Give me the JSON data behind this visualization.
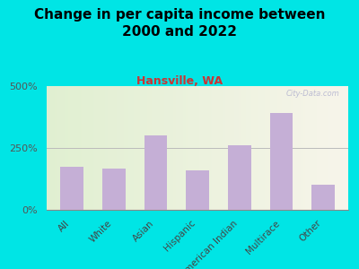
{
  "title": "Change in per capita income between\n2000 and 2022",
  "subtitle": "Hansville, WA",
  "categories": [
    "All",
    "White",
    "Asian",
    "Hispanic",
    "American Indian",
    "Multirace",
    "Other"
  ],
  "values": [
    175,
    165,
    300,
    160,
    260,
    390,
    100
  ],
  "bar_color": "#c5afd6",
  "title_fontsize": 11,
  "subtitle_fontsize": 9,
  "subtitle_color": "#cc3333",
  "background_outer": "#00e5e5",
  "ylim": [
    0,
    500
  ],
  "yticks": [
    0,
    250,
    500
  ],
  "ytick_labels": [
    "0%",
    "250%",
    "500%"
  ],
  "watermark": "City-Data.com"
}
